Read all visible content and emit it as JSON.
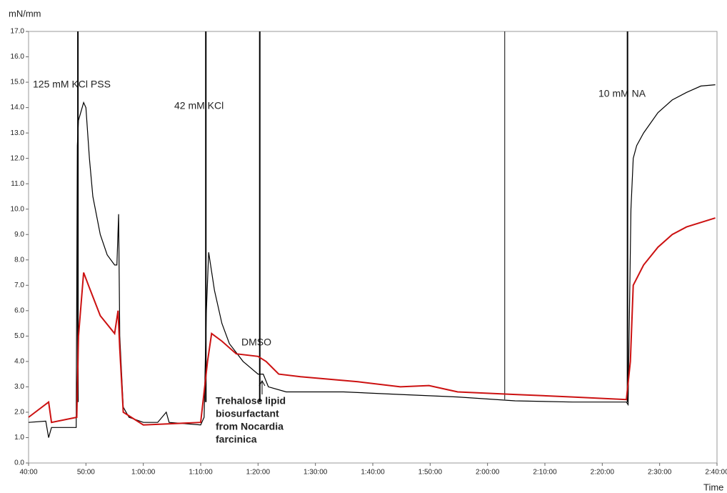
{
  "chart_data": {
    "type": "line",
    "y_label": "mN/mm",
    "x_label": "Time",
    "xlim": [
      40,
      160
    ],
    "ylim": [
      0,
      17
    ],
    "xticks": [
      {
        "value": 40,
        "label": "40:00"
      },
      {
        "value": 50,
        "label": "50:00"
      },
      {
        "value": 60,
        "label": "1:00:00"
      },
      {
        "value": 70,
        "label": "1:10:00"
      },
      {
        "value": 80,
        "label": "1:20:00"
      },
      {
        "value": 90,
        "label": "1:30:00"
      },
      {
        "value": 100,
        "label": "1:40:00"
      },
      {
        "value": 110,
        "label": "1:50:00"
      },
      {
        "value": 120,
        "label": "2:00:00"
      },
      {
        "value": 130,
        "label": "2:10:00"
      },
      {
        "value": 140,
        "label": "2:20:00"
      },
      {
        "value": 150,
        "label": "2:30:00"
      },
      {
        "value": 160,
        "label": "2:40:00"
      }
    ],
    "yticks": [
      {
        "value": 0,
        "label": "0.0"
      },
      {
        "value": 1,
        "label": "1.0"
      },
      {
        "value": 2,
        "label": "2.0"
      },
      {
        "value": 3,
        "label": "3.0"
      },
      {
        "value": 4,
        "label": "4.0"
      },
      {
        "value": 5,
        "label": "5.0"
      },
      {
        "value": 6,
        "label": "6.0"
      },
      {
        "value": 7,
        "label": "7.0"
      },
      {
        "value": 8,
        "label": "8.0"
      },
      {
        "value": 9,
        "label": "9.0"
      },
      {
        "value": 10,
        "label": "10.0"
      },
      {
        "value": 11,
        "label": "11.0"
      },
      {
        "value": 12,
        "label": "12.0"
      },
      {
        "value": 13,
        "label": "13.0"
      },
      {
        "value": 14,
        "label": "14.0"
      },
      {
        "value": 15,
        "label": "15.0"
      },
      {
        "value": 16,
        "label": "16.0"
      },
      {
        "value": 17,
        "label": "17.0"
      }
    ],
    "events": [
      48.6,
      70.9,
      80.3,
      123,
      144.4
    ],
    "annotations": [
      "125 mM KCl PSS",
      "42 mM KCl",
      "DMSO",
      "10 mM NA"
    ],
    "arrow_note": [
      "Trehalose lipid",
      "biosurfactant",
      "from Nocardia",
      "farcinica"
    ],
    "series": [
      {
        "color": "#000000",
        "x": [
          40,
          43,
          43.5,
          44,
          48.3,
          48.5,
          48.7,
          49.6,
          50,
          50.6,
          51.2,
          52.5,
          53.7,
          55,
          55.4,
          55.7,
          55.9,
          56.5,
          57.5,
          60,
          62.5,
          64,
          64.5,
          70,
          70.6,
          71,
          71.4,
          72.4,
          73.7,
          75,
          77.4,
          80,
          80.9,
          81.8,
          84.9,
          94.9,
          104.8,
          114.8,
          124.8,
          134.8,
          144.2,
          144.5,
          145,
          145.4,
          146,
          147.2,
          149.7,
          152.2,
          154.7,
          157.2,
          159.7
        ],
        "values": [
          1.6,
          1.65,
          1.0,
          1.4,
          1.4,
          12.5,
          13.5,
          14.2,
          14.0,
          12.0,
          10.5,
          9.0,
          8.2,
          7.8,
          7.8,
          9.8,
          5.0,
          2.2,
          1.8,
          1.6,
          1.6,
          2.0,
          1.6,
          1.5,
          1.8,
          6.0,
          8.3,
          6.8,
          5.5,
          4.7,
          4.0,
          3.5,
          3.5,
          3.0,
          2.8,
          2.8,
          2.7,
          2.6,
          2.45,
          2.4,
          2.4,
          2.3,
          10.0,
          12.0,
          12.5,
          13.0,
          13.8,
          14.3,
          14.6,
          14.85,
          14.9
        ]
      },
      {
        "color": "#cc1111",
        "x": [
          40,
          43.5,
          44,
          48.4,
          48.7,
          49.6,
          50.6,
          52.5,
          55,
          55.6,
          55.9,
          56.5,
          60,
          70,
          71.2,
          71.9,
          73.7,
          76.2,
          80,
          81.4,
          83.6,
          87.4,
          97.4,
          104.8,
          109.8,
          114.8,
          124.8,
          134.8,
          144.2,
          144.9,
          145.4,
          147.2,
          149.7,
          152.2,
          154.7,
          159.7
        ],
        "values": [
          1.8,
          2.4,
          1.6,
          1.8,
          5.0,
          7.5,
          6.9,
          5.8,
          5.1,
          6.0,
          4.5,
          2.0,
          1.5,
          1.6,
          4.0,
          5.1,
          4.8,
          4.3,
          4.2,
          4.0,
          3.5,
          3.4,
          3.2,
          3.0,
          3.05,
          2.8,
          2.7,
          2.6,
          2.5,
          4.0,
          7.0,
          7.8,
          8.5,
          9.0,
          9.3,
          9.65
        ]
      }
    ]
  }
}
